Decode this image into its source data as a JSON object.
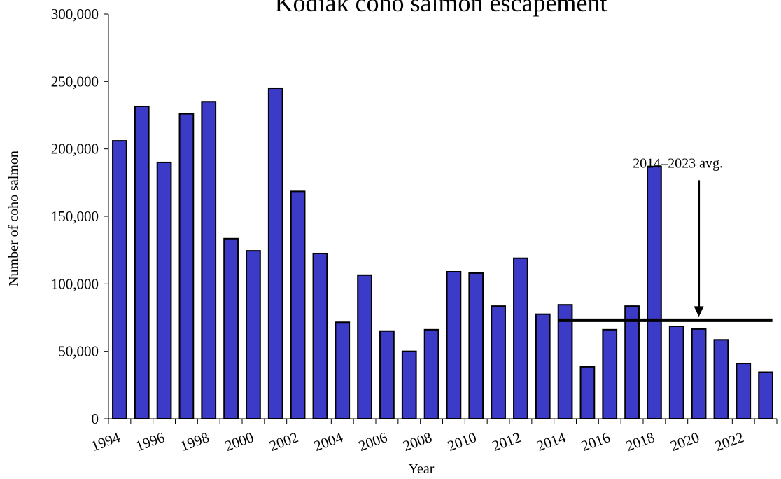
{
  "chart_data": {
    "type": "bar",
    "title": "Kodiak coho salmon escapement",
    "x_label": "Year",
    "y_label": "Number of coho salmon",
    "categories": [
      "1994",
      null,
      "1996",
      null,
      "1998",
      null,
      "2000",
      null,
      "2002",
      null,
      "2004",
      null,
      "2006",
      null,
      "2008",
      null,
      "2010",
      null,
      "2012",
      null,
      "2014",
      null,
      "2016",
      null,
      "2018",
      null,
      "2020",
      null,
      "2022",
      null
    ],
    "values": [
      206000,
      231500,
      190000,
      226000,
      235000,
      133500,
      124500,
      245000,
      168500,
      122500,
      71500,
      106500,
      65000,
      50000,
      66000,
      109000,
      108000,
      83500,
      119000,
      77500,
      84500,
      38500,
      66000,
      83500,
      187000,
      68500,
      66500,
      58500,
      41000,
      34500
    ],
    "color": "#3b3bc8",
    "ylim": [
      0,
      300000
    ],
    "yticks": [
      0,
      {
        "value": 50000,
        "label": "50,000"
      },
      {
        "value": 100000,
        "label": "100,000"
      },
      {
        "value": 150000,
        "label": "150,000"
      },
      {
        "value": 200000,
        "label": "200,000"
      },
      {
        "value": 250000,
        "label": "250,000"
      },
      {
        "value": 300000,
        "label": "300,000"
      }
    ],
    "grid": false,
    "annotations": [
      {
        "text": "2014–2023 avg.",
        "value": 73000,
        "from": 20,
        "to": 29,
        "arrow_at": 26
      }
    ]
  }
}
